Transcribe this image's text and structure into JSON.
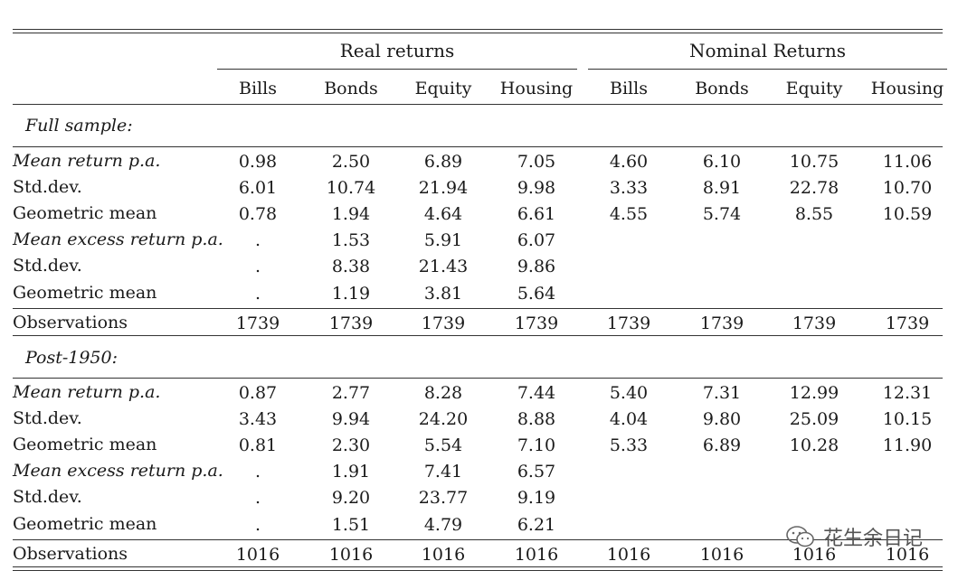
{
  "header": {
    "group_real": "Real returns",
    "group_nominal": "Nominal Returns",
    "columns": [
      "Bills",
      "Bonds",
      "Equity",
      "Housing",
      "Bills",
      "Bonds",
      "Equity",
      "Housing"
    ]
  },
  "sections": [
    {
      "title": "Full sample:",
      "rows": [
        {
          "label": "Mean return p.a.",
          "italic": true,
          "values": [
            "0.98",
            "2.50",
            "6.89",
            "7.05",
            "4.60",
            "6.10",
            "10.75",
            "11.06"
          ]
        },
        {
          "label": "Std.dev.",
          "italic": false,
          "values": [
            "6.01",
            "10.74",
            "21.94",
            "9.98",
            "3.33",
            "8.91",
            "22.78",
            "10.70"
          ]
        },
        {
          "label": "Geometric mean",
          "italic": false,
          "values": [
            "0.78",
            "1.94",
            "4.64",
            "6.61",
            "4.55",
            "5.74",
            "8.55",
            "10.59"
          ]
        },
        {
          "label": "Mean excess return p.a.",
          "italic": true,
          "values": [
            ".",
            "1.53",
            "5.91",
            "6.07",
            "",
            "",
            "",
            ""
          ]
        },
        {
          "label": "Std.dev.",
          "italic": false,
          "values": [
            ".",
            "8.38",
            "21.43",
            "9.86",
            "",
            "",
            "",
            ""
          ]
        },
        {
          "label": "Geometric mean",
          "italic": false,
          "values": [
            ".",
            "1.19",
            "3.81",
            "5.64",
            "",
            "",
            "",
            ""
          ]
        }
      ],
      "observations": {
        "label": "Observations",
        "values": [
          "1739",
          "1739",
          "1739",
          "1739",
          "1739",
          "1739",
          "1739",
          "1739"
        ]
      }
    },
    {
      "title": "Post-1950:",
      "rows": [
        {
          "label": "Mean return p.a.",
          "italic": true,
          "values": [
            "0.87",
            "2.77",
            "8.28",
            "7.44",
            "5.40",
            "7.31",
            "12.99",
            "12.31"
          ]
        },
        {
          "label": "Std.dev.",
          "italic": false,
          "values": [
            "3.43",
            "9.94",
            "24.20",
            "8.88",
            "4.04",
            "9.80",
            "25.09",
            "10.15"
          ]
        },
        {
          "label": "Geometric mean",
          "italic": false,
          "values": [
            "0.81",
            "2.30",
            "5.54",
            "7.10",
            "5.33",
            "6.89",
            "10.28",
            "11.90"
          ]
        },
        {
          "label": "Mean excess return p.a.",
          "italic": true,
          "values": [
            ".",
            "1.91",
            "7.41",
            "6.57",
            "",
            "",
            "",
            ""
          ]
        },
        {
          "label": "Std.dev.",
          "italic": false,
          "values": [
            ".",
            "9.20",
            "23.77",
            "9.19",
            "",
            "",
            "",
            ""
          ]
        },
        {
          "label": "Geometric mean",
          "italic": false,
          "values": [
            ".",
            "1.51",
            "4.79",
            "6.21",
            "",
            "",
            "",
            ""
          ]
        }
      ],
      "observations": {
        "label": "Observations",
        "values": [
          "1016",
          "1016",
          "1016",
          "1016",
          "1016",
          "1016",
          "1016",
          "1016"
        ]
      }
    }
  ],
  "watermark": {
    "text": "花生余日记",
    "icon": "wechat-icon"
  }
}
